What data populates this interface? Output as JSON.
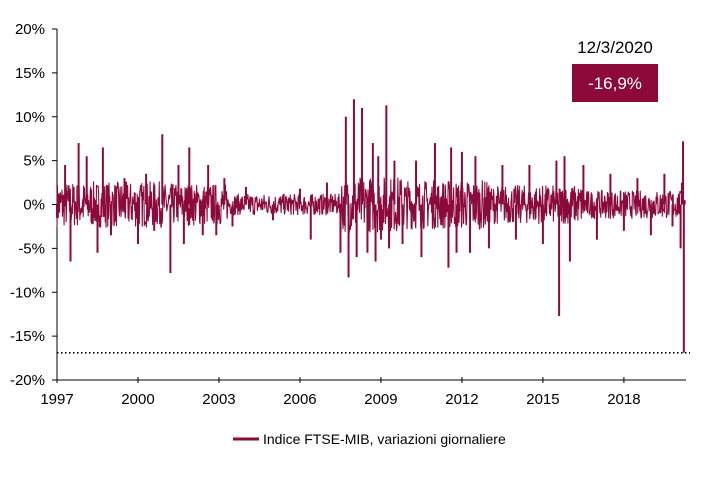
{
  "chart_data": {
    "type": "line",
    "title": "",
    "xlabel": "",
    "ylabel": "",
    "ylim": [
      -20,
      20
    ],
    "xlim": [
      1997,
      2020.3
    ],
    "y_ticks": [
      20,
      15,
      10,
      5,
      0,
      -5,
      -10,
      -15,
      -20
    ],
    "y_tick_labels": [
      "20%",
      "15%",
      "10%",
      "5%",
      "0%",
      "-5%",
      "-10%",
      "-15%",
      "-20%"
    ],
    "x_ticks": [
      1997,
      2000,
      2003,
      2006,
      2009,
      2012,
      2015,
      2018
    ],
    "x_tick_labels": [
      "1997",
      "2000",
      "2003",
      "2006",
      "2009",
      "2012",
      "2015",
      "2018"
    ],
    "grid": false,
    "legend_position": "bottom-center",
    "series": [
      {
        "name": "Indice FTSE-MIB, variazioni giornaliere",
        "color": "#8B0A3A",
        "x": [
          1997.0,
          1997.3,
          1997.5,
          1997.8,
          1998.1,
          1998.5,
          1998.7,
          1999.0,
          1999.5,
          2000.0,
          2000.3,
          2000.6,
          2000.9,
          2001.2,
          2001.5,
          2001.7,
          2001.9,
          2002.4,
          2002.6,
          2002.9,
          2003.2,
          2003.5,
          2004.0,
          2005.0,
          2006.0,
          2006.4,
          2007.0,
          2007.5,
          2007.7,
          2007.8,
          2008.0,
          2008.1,
          2008.3,
          2008.5,
          2008.7,
          2008.8,
          2008.9,
          2009.0,
          2009.2,
          2009.3,
          2009.5,
          2009.8,
          2010.3,
          2010.5,
          2011.0,
          2011.5,
          2011.6,
          2011.8,
          2012.0,
          2012.3,
          2012.5,
          2013.0,
          2013.5,
          2014.0,
          2014.5,
          2015.0,
          2015.5,
          2015.6,
          2015.8,
          2016.0,
          2016.5,
          2017.0,
          2017.5,
          2018.0,
          2018.5,
          2019.0,
          2019.5,
          2019.8,
          2020.1,
          2020.15,
          2020.19,
          2020.22,
          2020.25
        ],
        "values": [
          -1.5,
          4.5,
          -6.5,
          7.0,
          5.5,
          -5.5,
          6.5,
          -3.5,
          3.0,
          -4.5,
          3.5,
          -3.0,
          8.0,
          -7.8,
          4.5,
          -4.5,
          6.5,
          -3.5,
          4.5,
          -3.5,
          3.0,
          -2.5,
          2.0,
          -1.8,
          1.8,
          -4.0,
          2.5,
          -5.5,
          10.0,
          -8.3,
          12.0,
          -6.0,
          11.0,
          -5.5,
          7.0,
          -6.5,
          5.5,
          -4.0,
          11.3,
          -5.0,
          5.0,
          -4.5,
          5.0,
          -6.0,
          7.0,
          -7.2,
          6.5,
          -5.5,
          6.0,
          -5.5,
          5.5,
          -5.0,
          4.5,
          -4.0,
          4.5,
          -4.5,
          5.0,
          -12.7,
          5.5,
          -6.5,
          4.5,
          -4.0,
          3.5,
          -3.0,
          3.0,
          -3.5,
          3.5,
          -2.5,
          -5.0,
          2.5,
          7.2,
          -16.9,
          0.5
        ]
      }
    ],
    "reference_line": {
      "y": -16.9,
      "style": "dotted"
    },
    "annotation": {
      "date": "12/3/2020",
      "value": "-16,9%",
      "box_color": "#8B0A3A"
    }
  }
}
